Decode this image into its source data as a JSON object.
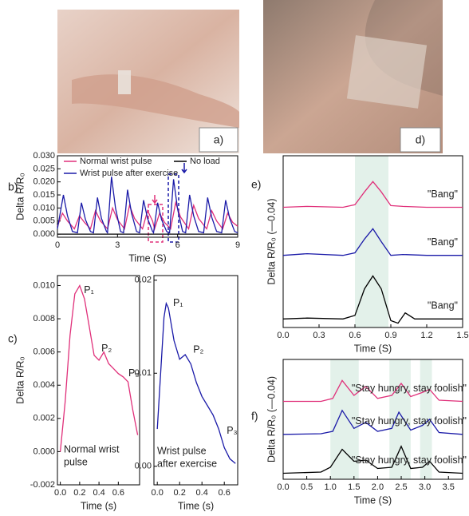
{
  "photos": [
    {
      "label": "a)"
    },
    {
      "label": "d)"
    }
  ],
  "chart_data": [
    {
      "type": "line",
      "label": "b)",
      "xlabel": "Time (S)",
      "ylabel": "Delta R/R₀",
      "xlim": [
        0,
        9
      ],
      "xticks": [
        0,
        3,
        6,
        9
      ],
      "ylim": [
        -0.0012,
        0.03
      ],
      "yticks": [
        {
          "value": 0,
          "label": "0.000"
        },
        {
          "value": 0.005,
          "label": "0.005"
        },
        {
          "value": 0.01,
          "label": "0.010"
        },
        {
          "value": 0.015,
          "label": "0.015"
        },
        {
          "value": 0.02,
          "label": "0.020"
        },
        {
          "value": 0.025,
          "label": "0.025"
        },
        {
          "value": 0.03,
          "label": "0.030"
        }
      ],
      "series": [
        {
          "name": "Normal wrist pulse",
          "color": "#e0307a",
          "x": [
            0,
            0.25,
            0.5,
            0.85,
            1.1,
            1.35,
            1.65,
            1.9,
            2.15,
            2.5,
            2.75,
            3.0,
            3.35,
            3.6,
            3.85,
            4.25,
            4.5,
            4.75,
            4.85,
            5.1,
            5.35,
            5.65,
            5.9,
            6.15,
            6.55,
            6.8,
            7.05,
            7.45,
            7.7,
            7.95,
            8.25,
            8.5,
            8.75,
            9.0
          ],
          "values": [
            0.003,
            0.008,
            0.005,
            0.002,
            0.007,
            0.0045,
            0.002,
            0.009,
            0.005,
            0.002,
            0.01,
            0.0055,
            0.002,
            0.011,
            0.006,
            0.002,
            0.009,
            0.005,
            0.002,
            0.008,
            0.0045,
            0.002,
            0.012,
            0.0065,
            0.002,
            0.011,
            0.006,
            0.002,
            0.009,
            0.005,
            0.002,
            0.008,
            0.0045,
            0.003
          ]
        },
        {
          "name": "No load",
          "color": "#000000",
          "x": [
            0,
            3,
            6,
            9
          ],
          "values": [
            0,
            0,
            0,
            0
          ]
        },
        {
          "name": "Wrist pulse after exercise",
          "color": "#1a1aa8",
          "x": [
            0,
            0.3,
            0.5,
            0.75,
            1.0,
            1.2,
            1.4,
            1.65,
            1.8,
            2.0,
            2.2,
            2.45,
            2.5,
            2.7,
            2.9,
            3.15,
            3.3,
            3.5,
            3.7,
            3.95,
            4.1,
            4.3,
            4.5,
            4.75,
            4.8,
            5.0,
            5.2,
            5.45,
            5.6,
            5.8,
            6.0,
            6.25,
            6.4,
            6.6,
            6.8,
            7.05,
            7.3,
            7.5,
            7.7,
            7.95,
            8.2,
            8.4,
            8.6,
            8.85,
            9.0
          ],
          "values": [
            0.002,
            0.015,
            0.007,
            0.001,
            0.0005,
            0.012,
            0.0055,
            0.001,
            0.0005,
            0.014,
            0.006,
            0.001,
            0.0005,
            0.022,
            0.01,
            0.001,
            0.0005,
            0.017,
            0.008,
            0.001,
            0.0005,
            0.013,
            0.006,
            0.001,
            0.0005,
            0.012,
            0.0055,
            0.001,
            0.0005,
            0.021,
            0.0095,
            0.001,
            0.0005,
            0.015,
            0.007,
            0.001,
            0.0005,
            0.014,
            0.0065,
            0.001,
            0.0005,
            0.013,
            0.006,
            0.001,
            0.0005
          ]
        }
      ]
    },
    {
      "type": "line",
      "label": "c)",
      "xlabel": "Time (s)",
      "ylabel": "Delta R/R₀",
      "annotations": [
        "P₁",
        "P₂",
        "P₃"
      ],
      "note": [
        "Normal wrist",
        "pulse"
      ],
      "xlim": [
        -0.03,
        0.82
      ],
      "xticks": [
        {
          "value": 0,
          "label": "0.0"
        },
        0.2,
        0.4,
        0.6
      ],
      "ylim": [
        -0.002,
        0.0106
      ],
      "yticks": [
        -0.002,
        {
          "value": 0,
          "label": "0.000"
        },
        0.002,
        0.004,
        0.006,
        0.008,
        {
          "value": 0.01,
          "label": "0.010"
        }
      ],
      "series": [
        {
          "name": "Normal wrist pulse",
          "color": "#e0307a",
          "x": [
            0,
            0.05,
            0.1,
            0.15,
            0.2,
            0.25,
            0.3,
            0.35,
            0.4,
            0.45,
            0.5,
            0.55,
            0.6,
            0.65,
            0.7,
            0.75,
            0.8
          ],
          "values": [
            0,
            0.003,
            0.007,
            0.0095,
            0.01,
            0.0092,
            0.0075,
            0.0058,
            0.0055,
            0.006,
            0.0053,
            0.005,
            0.0047,
            0.0045,
            0.0042,
            0.0025,
            0.001
          ]
        }
      ]
    },
    {
      "type": "line",
      "xlabel": "Time (s)",
      "annotations": [
        "P₁",
        "P₂",
        "P₃"
      ],
      "note": [
        "Wrist pulse",
        "after exercise"
      ],
      "xlim": [
        -0.03,
        0.72
      ],
      "xticks": [
        {
          "value": 0,
          "label": "0.0"
        },
        0.2,
        0.4,
        0.6
      ],
      "ylim": [
        -0.002,
        0.0205
      ],
      "yticks": [
        {
          "value": 0,
          "label": "0.00"
        },
        0.01,
        0.02
      ],
      "series": [
        {
          "name": "Wrist pulse after exercise",
          "color": "#1a1aa8",
          "x": [
            0,
            0.03,
            0.06,
            0.08,
            0.1,
            0.15,
            0.2,
            0.25,
            0.3,
            0.35,
            0.4,
            0.45,
            0.5,
            0.55,
            0.6,
            0.65,
            0.7
          ],
          "values": [
            0.004,
            0.01,
            0.016,
            0.0175,
            0.017,
            0.0135,
            0.0115,
            0.012,
            0.011,
            0.009,
            0.0075,
            0.0065,
            0.0055,
            0.004,
            0.002,
            0.0008,
            0.0003
          ]
        }
      ]
    },
    {
      "type": "line",
      "label": "e)",
      "xlabel": "Time (S)",
      "ylabel": "Delta R/R₀ (—0.04)",
      "xlim": [
        0,
        1.5
      ],
      "xticks": [
        {
          "value": 0,
          "label": "0.0"
        },
        0.3,
        0.6,
        0.9,
        1.2,
        1.5
      ],
      "ylim": [
        0,
        0.2
      ],
      "highlight": [
        [
          0.6,
          0.88
        ]
      ],
      "series": [
        {
          "name": "\"Bang\"",
          "color": "#e0307a",
          "x": [
            0,
            0.2,
            0.5,
            0.6,
            0.68,
            0.75,
            0.82,
            0.9,
            1.0,
            1.2,
            1.5
          ],
          "values": [
            0.14,
            0.141,
            0.14,
            0.143,
            0.158,
            0.17,
            0.158,
            0.142,
            0.141,
            0.14,
            0.14
          ]
        },
        {
          "name": "\"Bang\"",
          "color": "#1a1aa8",
          "x": [
            0,
            0.2,
            0.5,
            0.6,
            0.68,
            0.75,
            0.82,
            0.9,
            1.0,
            1.2,
            1.5
          ],
          "values": [
            0.084,
            0.086,
            0.084,
            0.087,
            0.103,
            0.115,
            0.1,
            0.084,
            0.085,
            0.084,
            0.084
          ]
        },
        {
          "name": "\"Bang\"",
          "color": "#000000",
          "x": [
            0,
            0.2,
            0.5,
            0.6,
            0.68,
            0.75,
            0.82,
            0.9,
            0.96,
            1.02,
            1.1,
            1.2,
            1.5
          ],
          "values": [
            0.01,
            0.011,
            0.01,
            0.014,
            0.045,
            0.06,
            0.045,
            0.008,
            0.005,
            0.017,
            0.01,
            0.01,
            0.01
          ]
        }
      ]
    },
    {
      "type": "line",
      "label": "f)",
      "xlabel": "Time (S)",
      "ylabel": "Delta R/R₀ (—0.04)",
      "xlim": [
        0,
        3.8
      ],
      "xticks": [
        {
          "value": 0,
          "label": "0.0"
        },
        0.5,
        {
          "value": 1,
          "label": "1.0"
        },
        1.5,
        {
          "value": 2,
          "label": "2.0"
        },
        2.5,
        {
          "value": 3,
          "label": "3.0"
        },
        3.5
      ],
      "ylim": [
        0,
        0.2
      ],
      "highlight": [
        [
          1.0,
          1.6
        ],
        [
          2.25,
          2.7
        ],
        [
          2.9,
          3.15
        ]
      ],
      "series": [
        {
          "name": "\"Stay hungry, stay foolish\"",
          "color": "#e0307a",
          "x": [
            0,
            0.8,
            1.05,
            1.25,
            1.5,
            1.75,
            2.0,
            2.3,
            2.5,
            2.7,
            2.95,
            3.1,
            3.3,
            3.8
          ],
          "values": [
            0.13,
            0.13,
            0.135,
            0.165,
            0.14,
            0.155,
            0.135,
            0.14,
            0.16,
            0.138,
            0.145,
            0.15,
            0.132,
            0.13
          ]
        },
        {
          "name": "\"Stay hungry, stay foolish\"",
          "color": "#1a1aa8",
          "x": [
            0,
            0.8,
            1.05,
            1.25,
            1.5,
            1.75,
            2.0,
            2.3,
            2.45,
            2.7,
            2.95,
            3.1,
            3.3,
            3.8
          ],
          "values": [
            0.075,
            0.076,
            0.08,
            0.115,
            0.085,
            0.095,
            0.08,
            0.085,
            0.112,
            0.082,
            0.09,
            0.1,
            0.078,
            0.075
          ]
        },
        {
          "name": "\"Stay hungry, stay foolish\"",
          "color": "#000000",
          "x": [
            0,
            0.8,
            1.0,
            1.25,
            1.5,
            1.75,
            2.0,
            2.3,
            2.5,
            2.7,
            2.95,
            3.1,
            3.3,
            3.8
          ],
          "values": [
            0.01,
            0.012,
            0.02,
            0.05,
            0.03,
            0.032,
            0.018,
            0.02,
            0.055,
            0.018,
            0.02,
            0.03,
            0.012,
            0.01
          ]
        }
      ]
    }
  ]
}
